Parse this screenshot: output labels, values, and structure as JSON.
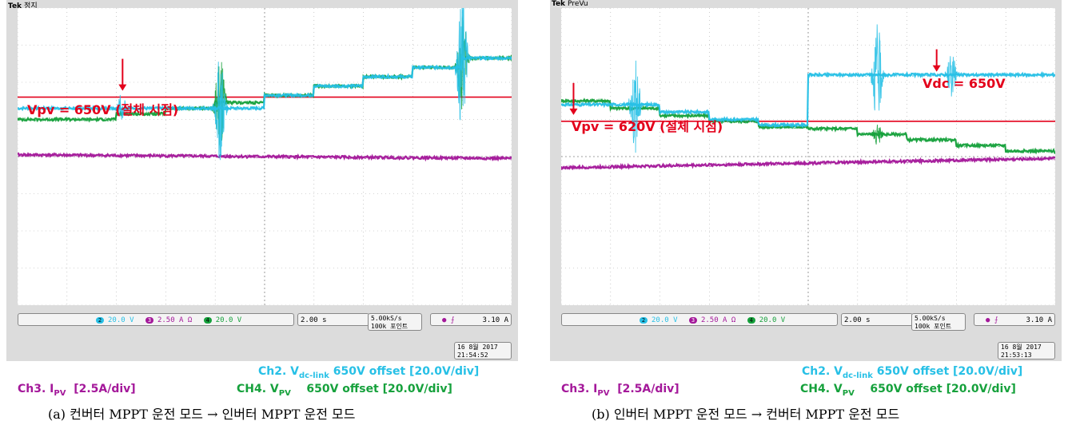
{
  "chart_data": [
    {
      "type": "line",
      "panel_id": "a",
      "scope": {
        "brand": "Tek",
        "mode": "정지",
        "ch2_scale": "20.0 V",
        "ch3_scale": "2.50 A Ω",
        "ch4_scale": "20.0 V",
        "time_div": "2.00 s",
        "sample_rate": "5.00kS/s",
        "record_length": "100k 포인트",
        "trigger_level": "3.10 A",
        "date": "16 8월 2017",
        "time": "21:54:52"
      },
      "annotations": [
        {
          "label": "Vpv = 650V (절체 시점)",
          "marker_time_s": -5.75
        }
      ],
      "x_range_s": [
        -10,
        10
      ],
      "y_range_div": [
        -4,
        4
      ],
      "reference_line_div": 1.6,
      "series": [
        {
          "name": "Ch2. Vdc-link",
          "color": "#27c0e6",
          "steps": [
            [
              -10,
              1.3
            ],
            [
              -4,
              1.3
            ],
            [
              0,
              1.65
            ],
            [
              2,
              1.9
            ],
            [
              4,
              2.15
            ],
            [
              6,
              2.4
            ],
            [
              8,
              2.65
            ],
            [
              10,
              2.7
            ]
          ],
          "bursts": [
            [
              -5.8,
              0.4
            ],
            [
              -1.8,
              1.5
            ],
            [
              8,
              2.0
            ]
          ]
        },
        {
          "name": "CH4. Vpv",
          "color": "#16a13c",
          "steps": [
            [
              -10,
              1.0
            ],
            [
              -8,
              1.0
            ],
            [
              -6,
              1.15
            ],
            [
              -4,
              1.3
            ],
            [
              -2,
              1.45
            ],
            [
              0,
              1.65
            ],
            [
              2,
              1.9
            ],
            [
              4,
              2.15
            ],
            [
              6,
              2.4
            ],
            [
              8,
              2.65
            ],
            [
              10,
              2.7
            ]
          ],
          "bursts": [
            [
              -1.8,
              1.5
            ],
            [
              8,
              1.3
            ]
          ]
        },
        {
          "name": "Ch3. IPV",
          "color": "#a4189a",
          "steps": [
            [
              -10,
              0.05
            ],
            [
              10,
              -0.05
            ]
          ],
          "bursts": []
        }
      ]
    },
    {
      "type": "line",
      "panel_id": "b",
      "scope": {
        "brand": "Tek",
        "mode": "PreVu",
        "ch2_scale": "20.0 V",
        "ch3_scale": "2.50 A Ω",
        "ch4_scale": "20.0 V",
        "time_div": "2.00 s",
        "sample_rate": "5.00kS/s",
        "record_length": "100k 포인트",
        "trigger_level": "3.10 A",
        "date": "16 8월 2017",
        "time": "21:53:13"
      },
      "annotations": [
        {
          "label": "Vpv = 620V (절체 시점)",
          "marker_time_s": -9.5
        },
        {
          "label": "Vdc = 650V",
          "marker_time_s": 5.2
        }
      ],
      "x_range_s": [
        -10,
        10
      ],
      "y_range_div": [
        -4,
        4
      ],
      "reference_line_div": 0.95,
      "series": [
        {
          "name": "Ch2. Vdc-link",
          "color": "#27c0e6",
          "steps": [
            [
              -10,
              1.4
            ],
            [
              -8,
              1.4
            ],
            [
              -6,
              1.2
            ],
            [
              -4,
              1.0
            ],
            [
              -2,
              0.85
            ],
            [
              0,
              0.85
            ],
            [
              0,
              2.2
            ],
            [
              10,
              2.2
            ]
          ],
          "bursts": [
            [
              -7,
              1.3
            ],
            [
              2.8,
              1.4
            ],
            [
              5.8,
              0.6
            ]
          ]
        },
        {
          "name": "CH4. Vpv",
          "color": "#16a13c",
          "steps": [
            [
              -10,
              1.5
            ],
            [
              -8,
              1.3
            ],
            [
              -6,
              1.1
            ],
            [
              -4,
              0.95
            ],
            [
              -2,
              0.8
            ],
            [
              0,
              0.75
            ],
            [
              2,
              0.6
            ],
            [
              4,
              0.45
            ],
            [
              6,
              0.3
            ],
            [
              8,
              0.15
            ],
            [
              10,
              0.1
            ]
          ],
          "bursts": [
            [
              2.8,
              0.3
            ]
          ]
        },
        {
          "name": "Ch3. IPV",
          "color": "#a4189a",
          "steps": [
            [
              -10,
              -0.3
            ],
            [
              10,
              -0.05
            ]
          ],
          "bursts": []
        }
      ]
    }
  ],
  "legend": {
    "ch2_prefix": "Ch2. V",
    "ch2_sub": "dc-link",
    "ch2_rest": " 650V offset [20.0V/div]",
    "ch3_prefix": "Ch3. I",
    "ch3_sub": "PV",
    "ch3_rest": "  [2.5A/div]",
    "ch4_prefix": "CH4. V",
    "ch4_sub": "PV",
    "ch4_rest": "    650V offset [20.0V/div]"
  },
  "captions": {
    "a": "(a) 컨버터 MPPT 운전 모드 → 인버터 MPPT 운전 모드",
    "b": "(b) 인버터 MPPT 운전 모드 → 컨버터 MPPT 운전 모드"
  },
  "channel_markers": {
    "ch2": "2",
    "ch3": "3",
    "ch4": "4"
  }
}
